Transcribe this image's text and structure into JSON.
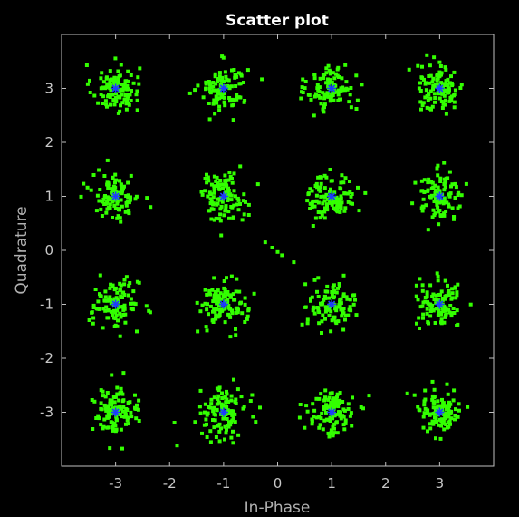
{
  "chart_data": {
    "type": "scatter",
    "title": "Scatter plot",
    "xlabel": "In-Phase",
    "ylabel": "Quadrature",
    "xlim": [
      -4,
      4
    ],
    "ylim": [
      -4,
      4
    ],
    "xticks": [
      -3,
      -2,
      -1,
      0,
      1,
      2,
      3
    ],
    "yticks": [
      -3,
      -2,
      -1,
      0,
      1,
      2,
      3
    ],
    "grid": false,
    "colors": {
      "background": "#000000",
      "axes": "#c0c0c0",
      "received": "#33ff00",
      "reference": "#1e3cff"
    },
    "series": [
      {
        "marker": "square",
        "points_per_cluster": 110,
        "cluster_spread": 0.22,
        "cluster_centers": [
          [
            -3,
            3
          ],
          [
            -1,
            3
          ],
          [
            1,
            3
          ],
          [
            3,
            3
          ],
          [
            -3,
            1
          ],
          [
            -1,
            1
          ],
          [
            1,
            1
          ],
          [
            3,
            1
          ],
          [
            -3,
            -1
          ],
          [
            -1,
            -1
          ],
          [
            1,
            -1
          ],
          [
            3,
            -1
          ],
          [
            -3,
            -3
          ],
          [
            -1,
            -3
          ],
          [
            1,
            -3
          ],
          [
            3,
            -3
          ]
        ],
        "transient_points": [
          [
            -0.23,
            0.15
          ],
          [
            -0.1,
            0.05
          ],
          [
            0.0,
            -0.03
          ],
          [
            0.08,
            -0.09
          ],
          [
            0.3,
            -0.22
          ]
        ]
      },
      {
        "marker": "star",
        "points": [
          [
            -3,
            3
          ],
          [
            -1,
            3
          ],
          [
            1,
            3
          ],
          [
            3,
            3
          ],
          [
            -3,
            1
          ],
          [
            -1,
            1
          ],
          [
            1,
            1
          ],
          [
            3,
            1
          ],
          [
            -3,
            -1
          ],
          [
            -1,
            -1
          ],
          [
            1,
            -1
          ],
          [
            3,
            -1
          ],
          [
            -3,
            -3
          ],
          [
            -1,
            -3
          ],
          [
            1,
            -3
          ],
          [
            3,
            -3
          ]
        ]
      }
    ]
  }
}
